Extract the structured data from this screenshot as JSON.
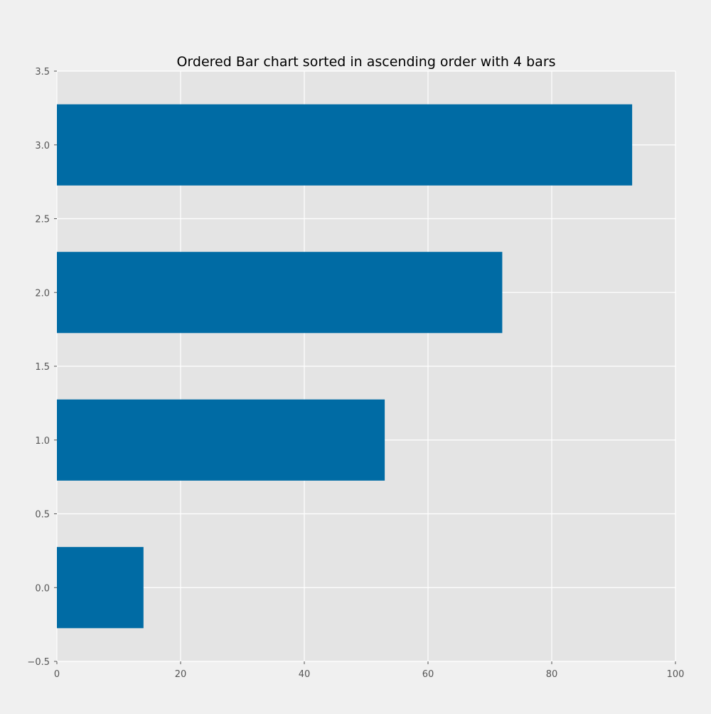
{
  "chart_data": {
    "type": "bar",
    "orientation": "horizontal",
    "title": "Ordered Bar chart sorted in ascending order with 4 bars",
    "xlabel": "",
    "ylabel": "",
    "y_positions": [
      0,
      1,
      2,
      3
    ],
    "values": [
      14,
      53,
      72,
      93
    ],
    "bar_height": 0.55,
    "xlim": [
      0,
      100
    ],
    "ylim": [
      -0.5,
      3.5
    ],
    "x_ticks": [
      0,
      20,
      40,
      60,
      80,
      100
    ],
    "x_tick_labels": [
      "0",
      "20",
      "40",
      "60",
      "80",
      "100"
    ],
    "y_ticks": [
      -0.5,
      0,
      0.5,
      1,
      1.5,
      2,
      2.5,
      3,
      3.5
    ],
    "y_tick_labels": [
      "−0.5",
      "0.0",
      "0.5",
      "1.0",
      "1.5",
      "2.0",
      "2.5",
      "3.0",
      "3.5"
    ],
    "grid": true,
    "legend": "none"
  },
  "colors": {
    "figure_bg": "#f0f0f0",
    "plot_bg": "#e4e4e4",
    "grid": "#ffffff",
    "bar": "#006ba4",
    "tick_text": "#555555",
    "title_text": "#000000"
  }
}
